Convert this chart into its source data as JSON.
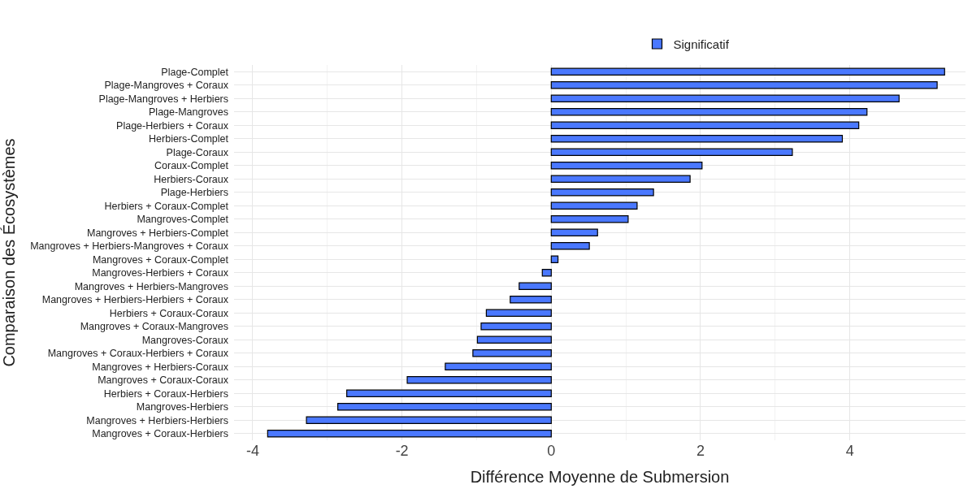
{
  "chart_data": {
    "type": "bar",
    "orientation": "horizontal",
    "xlabel": "Différence Moyenne de Submersion",
    "ylabel": "Comparaison des Écosystèmes",
    "categories": [
      "Plage-Complet",
      "Plage-Mangroves + Coraux",
      "Plage-Mangroves + Herbiers",
      "Plage-Mangroves",
      "Plage-Herbiers + Coraux",
      "Herbiers-Complet",
      "Plage-Coraux",
      "Coraux-Complet",
      "Herbiers-Coraux",
      "Plage-Herbiers",
      "Herbiers + Coraux-Complet",
      "Mangroves-Complet",
      "Mangroves + Herbiers-Complet",
      "Mangroves + Herbiers-Mangroves + Coraux",
      "Mangroves + Coraux-Complet",
      "Mangroves-Herbiers + Coraux",
      "Mangroves + Herbiers-Mangroves",
      "Mangroves + Herbiers-Herbiers + Coraux",
      "Herbiers + Coraux-Coraux",
      "Mangroves + Coraux-Mangroves",
      "Mangroves-Coraux",
      "Mangroves + Coraux-Herbiers + Coraux",
      "Mangroves + Herbiers-Coraux",
      "Mangroves + Coraux-Coraux",
      "Herbiers + Coraux-Herbiers",
      "Mangroves-Herbiers",
      "Mangroves + Herbiers-Herbiers",
      "Mangroves + Coraux-Herbiers"
    ],
    "series": [
      {
        "name": "Significatif",
        "color": "#4a78ff",
        "values": [
          5.27,
          5.17,
          4.66,
          4.23,
          4.12,
          3.9,
          3.23,
          2.02,
          1.86,
          1.37,
          1.15,
          1.03,
          0.62,
          0.51,
          0.09,
          -0.12,
          -0.43,
          -0.55,
          -0.87,
          -0.94,
          -0.99,
          -1.05,
          -1.42,
          -1.93,
          -2.74,
          -2.86,
          -3.28,
          -3.8
        ]
      }
    ],
    "xlim": [
      -4.25,
      5.55
    ],
    "xticks": [
      -4,
      -2,
      0,
      2,
      4
    ],
    "grid": true,
    "legend": "top"
  }
}
